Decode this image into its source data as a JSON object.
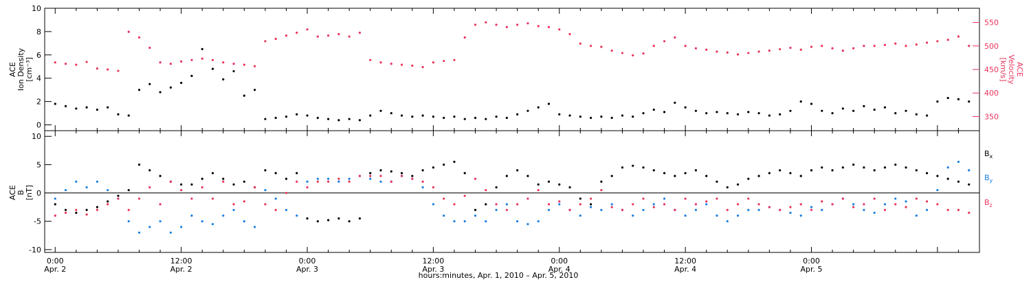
{
  "colors": {
    "black": "#000000",
    "pink": "#e8335c",
    "blue": "#1a7fe0"
  },
  "chart_data": [
    {
      "type": "scatter",
      "panel": "top",
      "left_axis": {
        "label_lines": [
          "ACE",
          "Ion Density",
          "[cm⁻³]"
        ],
        "ylim": [
          -0.5,
          10
        ],
        "ticks": [
          "0",
          "2",
          "4",
          "6",
          "8",
          "10"
        ]
      },
      "right_axis": {
        "label_lines": [
          "ACE",
          "Velocity",
          "[km/s]"
        ],
        "ylim": [
          320,
          580
        ],
        "ticks": [
          "350",
          "400",
          "450",
          "500",
          "550"
        ]
      },
      "xlim_hours": [
        -1,
        88
      ],
      "series": [
        {
          "color": "black",
          "axis": "left",
          "x_hours": [
            0,
            1,
            2,
            3,
            4,
            5,
            6,
            7,
            8,
            9,
            10,
            11,
            12,
            13,
            14,
            15,
            16,
            17,
            18,
            19,
            20,
            21,
            22,
            23,
            24,
            25,
            26,
            27,
            28,
            29,
            30,
            31,
            32,
            33,
            34,
            35,
            36,
            37,
            38,
            39,
            40,
            41,
            42,
            43,
            44,
            45,
            46,
            47,
            48,
            49,
            50,
            51,
            52,
            53,
            54,
            55,
            56,
            57,
            58,
            59,
            60,
            61,
            62,
            63,
            64,
            65,
            66,
            67,
            68,
            69,
            70,
            71,
            72,
            73,
            74,
            75,
            76,
            77,
            78,
            79,
            80,
            81,
            82,
            83,
            84,
            85,
            86,
            87
          ],
          "values": [
            1.8,
            1.6,
            1.4,
            1.5,
            1.3,
            1.5,
            0.9,
            0.8,
            3.0,
            3.5,
            2.8,
            3.2,
            3.6,
            4.2,
            6.5,
            4.8,
            3.9,
            4.6,
            2.5,
            3.0,
            0.5,
            0.6,
            0.7,
            0.9,
            0.8,
            0.6,
            0.5,
            0.4,
            0.5,
            0.4,
            0.8,
            1.2,
            1.0,
            0.8,
            0.7,
            0.8,
            0.7,
            0.6,
            0.7,
            0.5,
            0.6,
            0.5,
            0.7,
            0.6,
            0.9,
            1.2,
            1.5,
            1.8,
            0.9,
            0.8,
            0.7,
            0.6,
            0.7,
            0.6,
            0.8,
            0.7,
            1.0,
            1.3,
            1.1,
            1.9,
            1.5,
            1.2,
            1.0,
            1.1,
            1.0,
            0.9,
            1.1,
            1.0,
            0.8,
            0.9,
            1.2,
            2.0,
            1.8,
            1.2,
            1.0,
            1.4,
            1.2,
            1.6,
            1.3,
            1.5,
            1.0,
            1.2,
            0.9,
            0.8,
            2.0,
            2.3,
            2.2,
            2.0
          ]
        },
        {
          "color": "pink",
          "axis": "right",
          "x_hours": [
            0,
            1,
            2,
            3,
            4,
            5,
            6,
            7,
            8,
            9,
            10,
            11,
            12,
            13,
            14,
            15,
            16,
            17,
            18,
            19,
            20,
            21,
            22,
            23,
            24,
            25,
            26,
            27,
            28,
            29,
            30,
            31,
            32,
            33,
            34,
            35,
            36,
            37,
            38,
            39,
            40,
            41,
            42,
            43,
            44,
            45,
            46,
            47,
            48,
            49,
            50,
            51,
            52,
            53,
            54,
            55,
            56,
            57,
            58,
            59,
            60,
            61,
            62,
            63,
            64,
            65,
            66,
            67,
            68,
            69,
            70,
            71,
            72,
            73,
            74,
            75,
            76,
            77,
            78,
            79,
            80,
            81,
            82,
            83,
            84,
            85,
            86,
            87
          ],
          "values": [
            465,
            462,
            460,
            466,
            452,
            450,
            447,
            530,
            518,
            496,
            465,
            462,
            467,
            470,
            473,
            470,
            465,
            462,
            460,
            457,
            510,
            515,
            522,
            528,
            535,
            520,
            522,
            525,
            520,
            528,
            470,
            465,
            462,
            460,
            458,
            455,
            465,
            468,
            470,
            518,
            545,
            550,
            545,
            540,
            545,
            548,
            542,
            540,
            535,
            525,
            505,
            500,
            498,
            490,
            485,
            480,
            484,
            500,
            510,
            518,
            500,
            495,
            492,
            488,
            486,
            482,
            485,
            488,
            490,
            493,
            496,
            492,
            498,
            500,
            495,
            490,
            495,
            500,
            500,
            502,
            505,
            500,
            503,
            507,
            510,
            513,
            520,
            500
          ]
        }
      ]
    },
    {
      "type": "scatter",
      "panel": "bottom",
      "left_axis": {
        "label_lines": [
          "ACE",
          "B",
          "[nT]"
        ],
        "ylim": [
          -10.5,
          11
        ],
        "ticks": [
          "-10",
          "-5",
          "0",
          "5",
          "10"
        ]
      },
      "zero_line": true,
      "xlim_hours": [
        -1,
        88
      ],
      "legend": {
        "placement": "right",
        "entries": [
          {
            "base": "B",
            "sub": "x",
            "color": "black"
          },
          {
            "base": "B",
            "sub": "y",
            "color": "blue"
          },
          {
            "base": "B",
            "sub": "z",
            "color": "pink"
          }
        ]
      },
      "series": [
        {
          "name": "Bx",
          "color": "black",
          "x_hours": [
            0,
            1,
            2,
            3,
            4,
            5,
            6,
            7,
            8,
            9,
            10,
            11,
            12,
            13,
            14,
            15,
            16,
            17,
            18,
            19,
            20,
            21,
            22,
            23,
            24,
            25,
            26,
            27,
            28,
            29,
            30,
            31,
            32,
            33,
            34,
            35,
            36,
            37,
            38,
            39,
            40,
            41,
            42,
            43,
            44,
            45,
            46,
            47,
            48,
            49,
            50,
            51,
            52,
            53,
            54,
            55,
            56,
            57,
            58,
            59,
            60,
            61,
            62,
            63,
            64,
            65,
            66,
            67,
            68,
            69,
            70,
            71,
            72,
            73,
            74,
            75,
            76,
            77,
            78,
            79,
            80,
            81,
            82,
            83,
            84,
            85,
            86,
            87
          ],
          "values": [
            -2.0,
            -3.0,
            -3.5,
            -3.0,
            -2.5,
            -1.5,
            -0.5,
            0.5,
            5.0,
            4.0,
            3.0,
            2.0,
            1.5,
            1.5,
            2.5,
            3.5,
            2.5,
            1.5,
            2.0,
            1.0,
            4.0,
            3.5,
            2.5,
            3.5,
            -4.5,
            -5.0,
            -4.8,
            -4.5,
            -5.0,
            -4.5,
            3.5,
            4.0,
            3.8,
            3.5,
            3.0,
            4.0,
            4.5,
            5.0,
            5.5,
            3.5,
            -3.0,
            -2.0,
            1.0,
            3.0,
            4.0,
            3.0,
            1.5,
            2.0,
            1.5,
            1.0,
            -1.0,
            -2.0,
            2.0,
            3.0,
            4.5,
            4.8,
            4.5,
            4.0,
            3.5,
            3.0,
            3.5,
            4.0,
            3.0,
            2.0,
            1.0,
            1.5,
            2.5,
            3.0,
            3.5,
            4.0,
            3.5,
            3.0,
            4.0,
            4.5,
            4.0,
            4.5,
            5.0,
            4.5,
            4.0,
            4.5,
            5.0,
            4.5,
            4.0,
            3.5,
            3.0,
            2.5,
            2.0,
            1.5
          ]
        },
        {
          "name": "By",
          "color": "blue",
          "x_hours": [
            0,
            1,
            2,
            3,
            4,
            5,
            6,
            7,
            8,
            9,
            10,
            11,
            12,
            13,
            14,
            15,
            16,
            17,
            18,
            19,
            20,
            21,
            22,
            23,
            24,
            25,
            26,
            27,
            28,
            29,
            30,
            31,
            32,
            33,
            34,
            35,
            36,
            37,
            38,
            39,
            40,
            41,
            42,
            43,
            44,
            45,
            46,
            47,
            48,
            49,
            50,
            51,
            52,
            53,
            54,
            55,
            56,
            57,
            58,
            59,
            60,
            61,
            62,
            63,
            64,
            65,
            66,
            67,
            68,
            69,
            70,
            71,
            72,
            73,
            74,
            75,
            76,
            77,
            78,
            79,
            80,
            81,
            82,
            83,
            84,
            85,
            86,
            87
          ],
          "values": [
            -1.0,
            0.5,
            2.0,
            1.0,
            2.0,
            0.5,
            -1.0,
            -5.0,
            -7.0,
            -6.0,
            -5.0,
            -7.0,
            -6.0,
            -4.0,
            -5.0,
            -5.5,
            -4.0,
            -3.0,
            -5.0,
            -6.0,
            0.5,
            -1.0,
            -3.0,
            -4.0,
            2.0,
            2.5,
            2.5,
            2.0,
            2.5,
            3.0,
            2.5,
            2.0,
            2.0,
            3.0,
            2.5,
            1.0,
            -2.0,
            -4.0,
            -5.0,
            -5.0,
            -4.0,
            -5.0,
            -3.0,
            -2.0,
            -5.0,
            -5.5,
            -5.0,
            -3.0,
            -2.0,
            -3.0,
            -4.0,
            -2.5,
            -3.0,
            -2.0,
            -3.0,
            -4.0,
            -3.0,
            -2.0,
            -1.0,
            -3.0,
            -4.0,
            -3.0,
            -2.0,
            -4.0,
            -5.0,
            -4.0,
            -3.0,
            -3.0,
            -2.5,
            -3.0,
            -3.5,
            -4.0,
            -2.5,
            -3.0,
            -2.0,
            -1.0,
            -2.0,
            -3.0,
            -3.5,
            -2.0,
            -1.0,
            -1.5,
            -4.0,
            -3.0,
            0.5,
            4.5,
            5.5,
            4.0
          ]
        },
        {
          "name": "Bz",
          "color": "pink",
          "x_hours": [
            0,
            1,
            2,
            3,
            4,
            5,
            6,
            7,
            8,
            9,
            10,
            11,
            12,
            13,
            14,
            15,
            16,
            17,
            18,
            19,
            20,
            21,
            22,
            23,
            24,
            25,
            26,
            27,
            28,
            29,
            30,
            31,
            32,
            33,
            34,
            35,
            36,
            37,
            38,
            39,
            40,
            41,
            42,
            43,
            44,
            45,
            46,
            47,
            48,
            49,
            50,
            51,
            52,
            53,
            54,
            55,
            56,
            57,
            58,
            59,
            60,
            61,
            62,
            63,
            64,
            65,
            66,
            67,
            68,
            69,
            70,
            71,
            72,
            73,
            74,
            75,
            76,
            77,
            78,
            79,
            80,
            81,
            82,
            83,
            84,
            85,
            86,
            87
          ],
          "values": [
            -4.0,
            -3.5,
            -3.0,
            -3.8,
            -3.0,
            -2.0,
            -1.0,
            -3.0,
            -1.0,
            1.0,
            -2.0,
            2.0,
            0.5,
            -1.0,
            1.0,
            -1.0,
            2.0,
            -2.0,
            -1.5,
            1.0,
            -2.0,
            -3.0,
            0.0,
            2.0,
            1.0,
            2.0,
            2.0,
            2.5,
            2.0,
            3.0,
            3.0,
            3.0,
            2.0,
            3.0,
            2.5,
            2.0,
            1.0,
            -1.0,
            -2.0,
            -0.5,
            2.5,
            0.5,
            -2.0,
            -3.0,
            -2.0,
            -1.0,
            0.5,
            -2.0,
            -1.5,
            -3.0,
            -2.0,
            -1.0,
            0.5,
            -2.5,
            -3.0,
            -2.0,
            -1.0,
            -2.5,
            -2.0,
            -3.0,
            -1.0,
            -2.0,
            -1.5,
            -1.0,
            -3.0,
            -2.0,
            -1.0,
            -2.0,
            -2.5,
            -3.0,
            -2.5,
            -2.0,
            -3.0,
            -1.5,
            -2.0,
            -1.0,
            -2.5,
            -2.0,
            -1.0,
            -3.0,
            -2.0,
            -2.5,
            -1.0,
            -1.5,
            -2.0,
            -3.0,
            -3.0,
            -3.5
          ]
        }
      ]
    }
  ],
  "x_axis": {
    "ticks": [
      {
        "hour": 0,
        "time": "0:00",
        "date": "Apr. 2"
      },
      {
        "hour": 12,
        "time": "12:00",
        "date": "Apr. 2"
      },
      {
        "hour": 24,
        "time": "0:00",
        "date": "Apr. 3"
      },
      {
        "hour": 36,
        "time": "12:00",
        "date": "Apr. 3"
      },
      {
        "hour": 48,
        "time": "0:00",
        "date": "Apr. 4"
      },
      {
        "hour": 60,
        "time": "12:00",
        "date": "Apr. 4"
      },
      {
        "hour": 72,
        "time": "0:00",
        "date": "Apr. 5"
      }
    ],
    "label": "hours:minutes, Apr.  1, 2010 – Apr.  5, 2010"
  }
}
